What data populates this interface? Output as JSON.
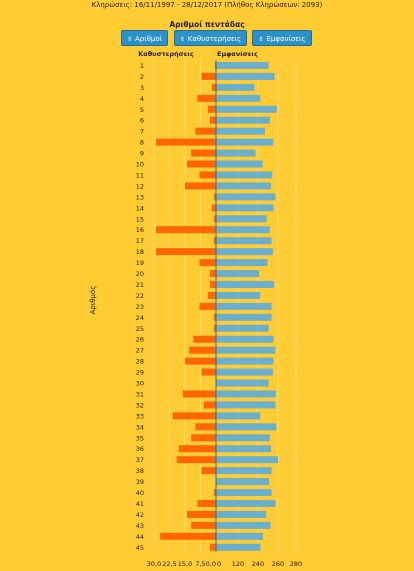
{
  "header": {
    "draws_text": "Κληρώσεις:    16/11/1997 - 28/12/2017  (Πλήθος Κληρώσεων: 2093)"
  },
  "chart_title": "Αριθμοί πεντάδας",
  "buttons": [
    {
      "label": "Αριθμοί",
      "icon": "sort-arrow-icon"
    },
    {
      "label": "Καθυστερήσεις",
      "icon": "sort-arrow-icon"
    },
    {
      "label": "Εμφανίσεις",
      "icon": "sort-arrow-icon"
    }
  ],
  "colors": {
    "delays": "#FF6600",
    "appearances": "#6AAFCB",
    "background": "#FFCC33",
    "button": "#2A92C8"
  },
  "chart_data": {
    "type": "bar",
    "orientation": "horizontal",
    "ylabel": "Αριθμός",
    "categories": [
      "1",
      "2",
      "3",
      "4",
      "5",
      "6",
      "7",
      "8",
      "9",
      "10",
      "11",
      "12",
      "13",
      "14",
      "15",
      "16",
      "17",
      "18",
      "19",
      "20",
      "21",
      "22",
      "23",
      "24",
      "25",
      "26",
      "27",
      "28",
      "29",
      "30",
      "31",
      "32",
      "33",
      "34",
      "35",
      "36",
      "37",
      "38",
      "39",
      "40",
      "41",
      "42",
      "43",
      "44",
      "45"
    ],
    "series": [
      {
        "name": "Καθυστερήσεις",
        "side": "left",
        "ticks": [
          "30,0",
          "22,5",
          "15,0",
          "7,5",
          "0,0"
        ],
        "xlim": [
          0,
          30
        ],
        "values": [
          0.5,
          7,
          2,
          9,
          4,
          3,
          10,
          29,
          12,
          14,
          8,
          15,
          1,
          2,
          1,
          29,
          1,
          29,
          8,
          3,
          3,
          4,
          8,
          1,
          1,
          11,
          13,
          15,
          7,
          0,
          16,
          6,
          21,
          10,
          12,
          18,
          19,
          7,
          0,
          1,
          9,
          14,
          12,
          27,
          3
        ]
      },
      {
        "name": "Εμφανίσεις",
        "side": "right",
        "ticks": [
          "0",
          "120",
          "240",
          "260",
          "280"
        ],
        "xlim": [
          0,
          280
        ],
        "values": [
          220,
          245,
          160,
          185,
          255,
          225,
          205,
          240,
          165,
          195,
          235,
          230,
          248,
          240,
          212,
          225,
          232,
          238,
          215,
          180,
          243,
          185,
          232,
          232,
          220,
          240,
          248,
          240,
          238,
          220,
          250,
          248,
          185,
          252,
          225,
          230,
          259,
          232,
          222,
          232,
          248,
          210,
          228,
          196,
          186
        ]
      }
    ]
  }
}
